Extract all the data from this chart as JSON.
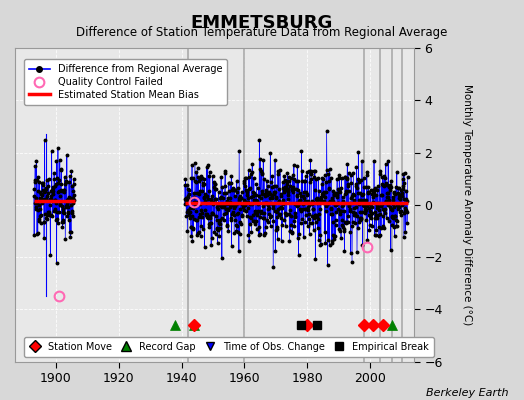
{
  "title": "EMMETSBURG",
  "subtitle": "Difference of Station Temperature Data from Regional Average",
  "ylabel": "Monthly Temperature Anomaly Difference (°C)",
  "credit": "Berkeley Earth",
  "xlim": [
    1887,
    2014
  ],
  "ylim": [
    -6,
    6
  ],
  "yticks": [
    -6,
    -4,
    -2,
    0,
    2,
    4,
    6
  ],
  "xticks": [
    1900,
    1920,
    1940,
    1960,
    1980,
    2000
  ],
  "bg_color": "#d8d8d8",
  "plot_bg_color": "#e8e8e8",
  "line_color": "#0000ff",
  "dot_color": "#000000",
  "bias_color": "#ff0000",
  "qc_color": "#ff69b4",
  "station_move_color": "#ff0000",
  "record_gap_color": "#008000",
  "obs_change_color": "#0000ff",
  "empirical_break_color": "#000000",
  "vline_color": "#aaaaaa",
  "early_years_start": 1893,
  "early_years_end": 1906,
  "early_mean": 0.15,
  "early_std": 0.7,
  "main_years_start": 1941,
  "main_years_end": 2012,
  "main_mean": 0.05,
  "main_std": 0.75,
  "bias_early_start": 1893,
  "bias_early_end": 1906,
  "bias_early_val": 0.15,
  "bias_main_start": 1941,
  "bias_main_end": 2012,
  "bias_main_val": 0.05,
  "qc_points": [
    [
      1901,
      -3.5
    ],
    [
      1944,
      0.1
    ],
    [
      1999,
      -1.6
    ]
  ],
  "vertical_lines": [
    1942,
    1960,
    1998,
    2003,
    2007,
    2010
  ],
  "station_moves": [
    1944,
    1980,
    1998,
    2001,
    2004
  ],
  "record_gaps": [
    1938,
    1944,
    2007
  ],
  "obs_changes": [],
  "empirical_breaks": [
    1978,
    1983
  ],
  "marker_y": -4.6,
  "seed": 17
}
